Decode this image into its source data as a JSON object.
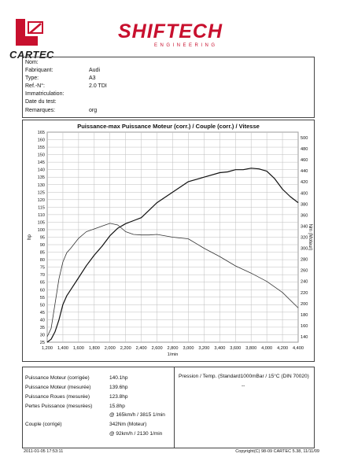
{
  "header": {
    "cartec_brand": "CARTEC",
    "shiftech_brand": "SHIFTECH",
    "shiftech_sub": "ENGINEERING"
  },
  "vehicle": {
    "rows": [
      {
        "label": "Nom:",
        "value": ""
      },
      {
        "label": "Fabriquant:",
        "value": "Audi"
      },
      {
        "label": "Type:",
        "value": "A3"
      },
      {
        "label": "Ref.-N°:",
        "value": "2.0 TDI"
      },
      {
        "label": "Immatriculation:",
        "value": ""
      },
      {
        "label": "Date du test:",
        "value": ""
      },
      {
        "label": "Remarques:",
        "value": "org"
      }
    ]
  },
  "chart_data": {
    "type": "line",
    "title": "Puissance-max Puissance Moteur (corr.) / Couple (corr.) / Vitesse",
    "xlabel": "1/min",
    "ylabel_left": "hp",
    "ylabel_right": "Nm (Moteur)",
    "xlim": [
      1200,
      4400
    ],
    "ylim_left": [
      25,
      165
    ],
    "ylim_right": [
      130,
      510
    ],
    "x_ticks": [
      1200,
      1400,
      1600,
      1800,
      2000,
      2200,
      2400,
      2600,
      2800,
      3000,
      3200,
      3400,
      3600,
      3800,
      4000,
      4200,
      4400
    ],
    "x_tick_labels": [
      "1,200",
      "1,400",
      "1,600",
      "1,800",
      "2,000",
      "2,200",
      "2,400",
      "2,600",
      "2,800",
      "3,000",
      "3,200",
      "3,400",
      "3,600",
      "3,800",
      "4,000",
      "4,200",
      "4,400"
    ],
    "y_left_ticks": [
      25,
      30,
      35,
      40,
      45,
      50,
      55,
      60,
      65,
      70,
      75,
      80,
      85,
      90,
      95,
      100,
      105,
      110,
      115,
      120,
      125,
      130,
      135,
      140,
      145,
      150,
      155,
      160,
      165
    ],
    "y_right_ticks": [
      140,
      160,
      180,
      200,
      220,
      240,
      260,
      280,
      300,
      320,
      340,
      360,
      380,
      400,
      420,
      440,
      460,
      480,
      500
    ],
    "grid": true,
    "series": [
      {
        "axis": "left",
        "color": "#111111",
        "x": [
          1200,
          1250,
          1300,
          1350,
          1400,
          1450,
          1500,
          1600,
          1700,
          1800,
          1900,
          2000,
          2100,
          2200,
          2300,
          2400,
          2500,
          2600,
          2800,
          3000,
          3200,
          3400,
          3500,
          3600,
          3700,
          3800,
          3900,
          4000,
          4100,
          4200,
          4300,
          4400
        ],
        "values": [
          25,
          27,
          32,
          40,
          50,
          56,
          60,
          68,
          76,
          83,
          89,
          96,
          101,
          104,
          106,
          108,
          113,
          118,
          125,
          132,
          135,
          138,
          138.5,
          140,
          140,
          141,
          140.5,
          139,
          134,
          127,
          122,
          118
        ]
      },
      {
        "axis": "right",
        "color": "#333333",
        "x": [
          1200,
          1250,
          1300,
          1350,
          1400,
          1450,
          1500,
          1600,
          1700,
          1800,
          1900,
          2000,
          2100,
          2200,
          2300,
          2400,
          2500,
          2600,
          2800,
          3000,
          3200,
          3400,
          3600,
          3800,
          4000,
          4200,
          4400
        ],
        "values": [
          140,
          155,
          200,
          245,
          275,
          292,
          300,
          318,
          330,
          335,
          340,
          345,
          342,
          330,
          325,
          324,
          324,
          325,
          320,
          317,
          300,
          285,
          268,
          255,
          240,
          220,
          192
        ]
      }
    ]
  },
  "results": {
    "rows": [
      {
        "label": "Puissance Moteur (corrigée)",
        "value": "140.1hp"
      },
      {
        "label": "Puissance Moteur (mesurée)",
        "value": "139.6hp"
      },
      {
        "label": "Puissance Roues (mesurée)",
        "value": "123.8hp"
      },
      {
        "label": "Pertes Puissance (mesurées)",
        "value": "15.8hp"
      },
      {
        "label": "",
        "value": "@ 165km/h / 3815 1/min"
      },
      {
        "label": "Couple (corrigé)",
        "value": "342Nm (Moteur)"
      },
      {
        "label": "",
        "value": "@ 92km/h / 2130 1/min"
      }
    ],
    "pressure_label": "Pression / Temp. (Standard1000mBar / 15°C   (DIN 70020)",
    "pressure_value": "--"
  },
  "footer": {
    "left": "2011-01-05 17:53:11",
    "right": "Copyright(C) 98-09 CARTEC 5.38, 11/11/09"
  }
}
